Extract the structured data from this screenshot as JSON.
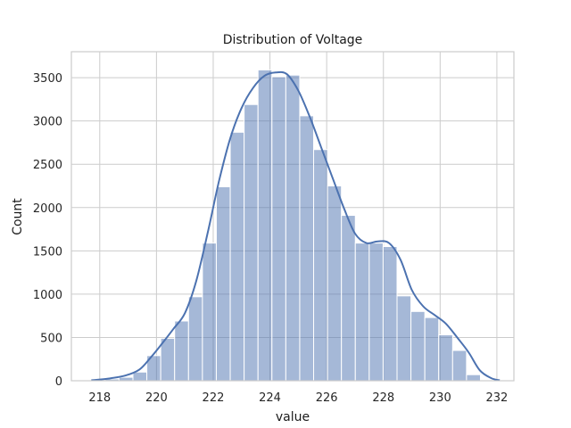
{
  "chart_data": {
    "type": "bar",
    "title": "Distribution of Voltage",
    "xlabel": "value",
    "ylabel": "Count",
    "xlim": [
      217.0,
      232.6
    ],
    "ylim": [
      0,
      3800
    ],
    "xticks": [
      218,
      220,
      222,
      224,
      226,
      228,
      230,
      232
    ],
    "yticks": [
      0,
      500,
      1000,
      1500,
      2000,
      2500,
      3000,
      3500
    ],
    "grid": true,
    "bar_color": "#4c72b0",
    "bar_alpha": 0.5,
    "kde_color": "#4c72b0",
    "bins": {
      "start": 217.7,
      "width": 0.49,
      "counts": [
        10,
        20,
        40,
        100,
        290,
        490,
        690,
        970,
        1590,
        2240,
        2870,
        3190,
        3590,
        3510,
        3530,
        3060,
        2670,
        2250,
        1910,
        1590,
        1590,
        1550,
        980,
        800,
        730,
        530,
        350,
        70
      ]
    },
    "kde": {
      "x": [
        217.7,
        218.3,
        218.9,
        219.4,
        219.8,
        220.2,
        220.6,
        221.0,
        221.4,
        221.8,
        222.2,
        222.6,
        223.0,
        223.4,
        223.8,
        224.2,
        224.6,
        225.0,
        225.4,
        225.8,
        226.2,
        226.6,
        227.0,
        227.4,
        227.8,
        228.2,
        228.6,
        229.0,
        229.4,
        229.8,
        230.2,
        230.6,
        231.0,
        231.4,
        231.8,
        232.1
      ],
      "y": [
        5,
        25,
        60,
        130,
        270,
        430,
        600,
        780,
        1150,
        1700,
        2300,
        2800,
        3150,
        3380,
        3520,
        3560,
        3540,
        3350,
        3050,
        2700,
        2350,
        2000,
        1700,
        1590,
        1610,
        1590,
        1400,
        1050,
        860,
        760,
        660,
        500,
        330,
        120,
        30,
        5
      ]
    }
  }
}
